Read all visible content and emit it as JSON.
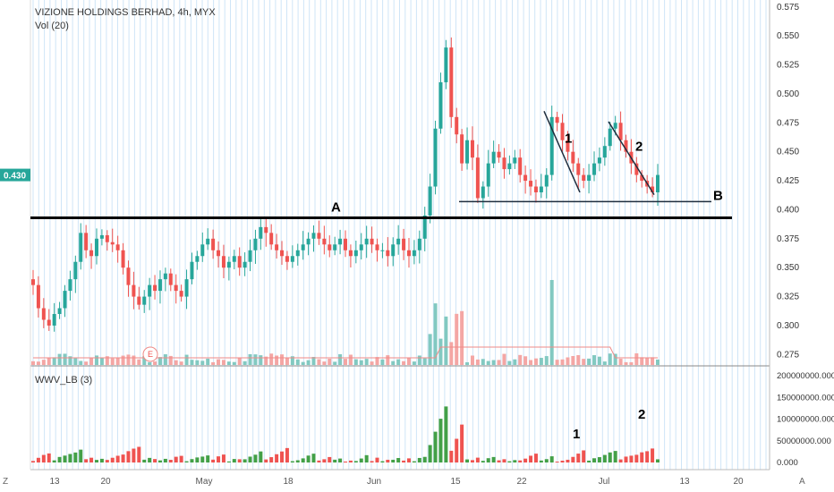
{
  "header": {
    "title": "VIZIONE HOLDINGS BERHAD, 4h, MYX",
    "volume_label": "Vol (20)",
    "indicator_label": "WWV_LB (3)",
    "corner_left": "Z",
    "corner_right": "A"
  },
  "colors": {
    "up": "#26a69a",
    "down": "#ef5350",
    "vol_up": "#82c9c1",
    "vol_down": "#f4a6a4",
    "osc_up": "#43a047",
    "osc_down": "#ef5350",
    "grid_vertical": "#cfe5f7",
    "last_price_bg": "#26a69a"
  },
  "chart_data": [
    {
      "type": "candlestick",
      "title": "VIZIONE HOLDINGS BERHAD, 4h, MYX",
      "price_axis_ticks": [
        "0.575",
        "0.550",
        "0.525",
        "0.500",
        "0.475",
        "0.450",
        "0.425",
        "0.400",
        "0.375",
        "0.350",
        "0.325",
        "0.300",
        "0.275"
      ],
      "ylim": [
        0.266,
        0.581
      ],
      "last_price": "0.430",
      "x_ticks": [
        "13",
        "20",
        "May",
        "18",
        "Jun",
        "15",
        "22",
        "Jul",
        "13",
        "20"
      ],
      "grid": "vertical",
      "ohlc_close_path": [
        0.335,
        0.315,
        0.305,
        0.3,
        0.31,
        0.315,
        0.33,
        0.34,
        0.355,
        0.38,
        0.365,
        0.36,
        0.375,
        0.378,
        0.372,
        0.37,
        0.365,
        0.35,
        0.335,
        0.325,
        0.318,
        0.325,
        0.335,
        0.33,
        0.34,
        0.345,
        0.335,
        0.33,
        0.325,
        0.34,
        0.355,
        0.36,
        0.37,
        0.375,
        0.365,
        0.36,
        0.35,
        0.355,
        0.36,
        0.35,
        0.355,
        0.365,
        0.375,
        0.385,
        0.38,
        0.37,
        0.365,
        0.36,
        0.355,
        0.36,
        0.365,
        0.37,
        0.375,
        0.38,
        0.375,
        0.37,
        0.365,
        0.37,
        0.375,
        0.365,
        0.36,
        0.365,
        0.37,
        0.375,
        0.37,
        0.365,
        0.365,
        0.36,
        0.37,
        0.375,
        0.365,
        0.36,
        0.365,
        0.375,
        0.395,
        0.42,
        0.47,
        0.51,
        0.54,
        0.48,
        0.465,
        0.44,
        0.46,
        0.445,
        0.41,
        0.42,
        0.44,
        0.45,
        0.445,
        0.435,
        0.44,
        0.445,
        0.43,
        0.425,
        0.42,
        0.415,
        0.42,
        0.43,
        0.48,
        0.475,
        0.46,
        0.45,
        0.44,
        0.43,
        0.425,
        0.43,
        0.44,
        0.445,
        0.455,
        0.47,
        0.475,
        0.46,
        0.45,
        0.44,
        0.43,
        0.425,
        0.42,
        0.415,
        0.43
      ],
      "series": [
        {
          "name": "Vol (20)",
          "type": "bar"
        },
        {
          "name": "WWV_LB (3)",
          "type": "bar",
          "axis_ticks": [
            "200000000.000",
            "150000000.000",
            "100000000.000",
            "50000000.000",
            "0.000"
          ],
          "ylim": [
            0,
            200000000
          ]
        }
      ],
      "annotations": [
        {
          "text": "A",
          "kind": "horizontal_line",
          "price": 0.393
        },
        {
          "text": "B",
          "kind": "horizontal_line",
          "price": 0.407
        },
        {
          "text": "1",
          "kind": "trend_line"
        },
        {
          "text": "2",
          "kind": "trend_line"
        },
        {
          "text": "1",
          "kind": "oscillator_label"
        },
        {
          "text": "2",
          "kind": "oscillator_label"
        },
        {
          "text": "E",
          "kind": "earnings_marker"
        }
      ]
    }
  ]
}
